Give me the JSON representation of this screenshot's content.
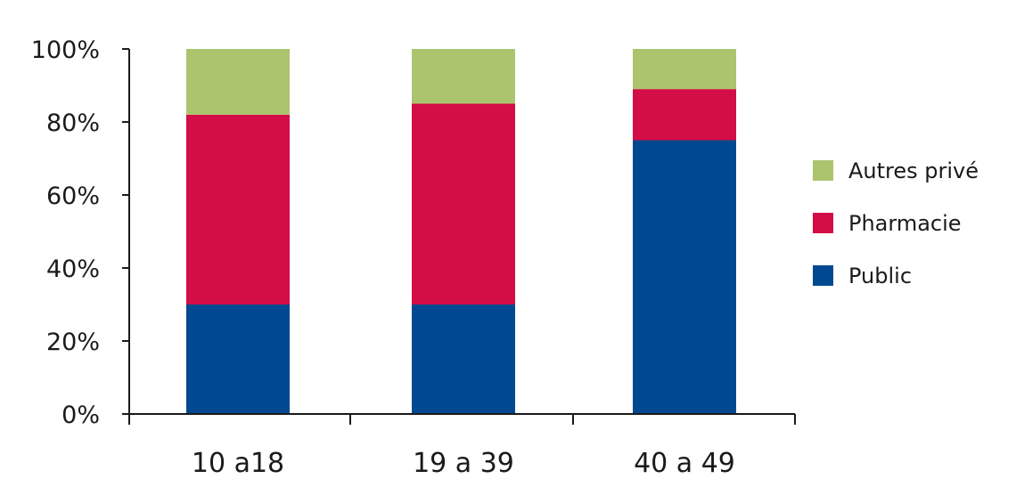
{
  "chart_data": {
    "type": "bar",
    "stacked": true,
    "categories": [
      "10 a18",
      "19 a 39",
      "40 a 49"
    ],
    "series": [
      {
        "name": "Public",
        "color": "#004990",
        "values": [
          30,
          30,
          75
        ]
      },
      {
        "name": "Pharmacie",
        "color": "#d30d45",
        "values": [
          52,
          55,
          14
        ]
      },
      {
        "name": "Autres privé",
        "color": "#acc46e",
        "values": [
          18,
          15,
          11
        ]
      }
    ],
    "y_ticks": [
      "0%",
      "20%",
      "40%",
      "60%",
      "80%",
      "100%"
    ],
    "ylim": [
      0,
      100
    ],
    "legend": {
      "position": "right",
      "order": [
        "Autres privé",
        "Pharmacie",
        "Public"
      ]
    },
    "grid": false
  }
}
